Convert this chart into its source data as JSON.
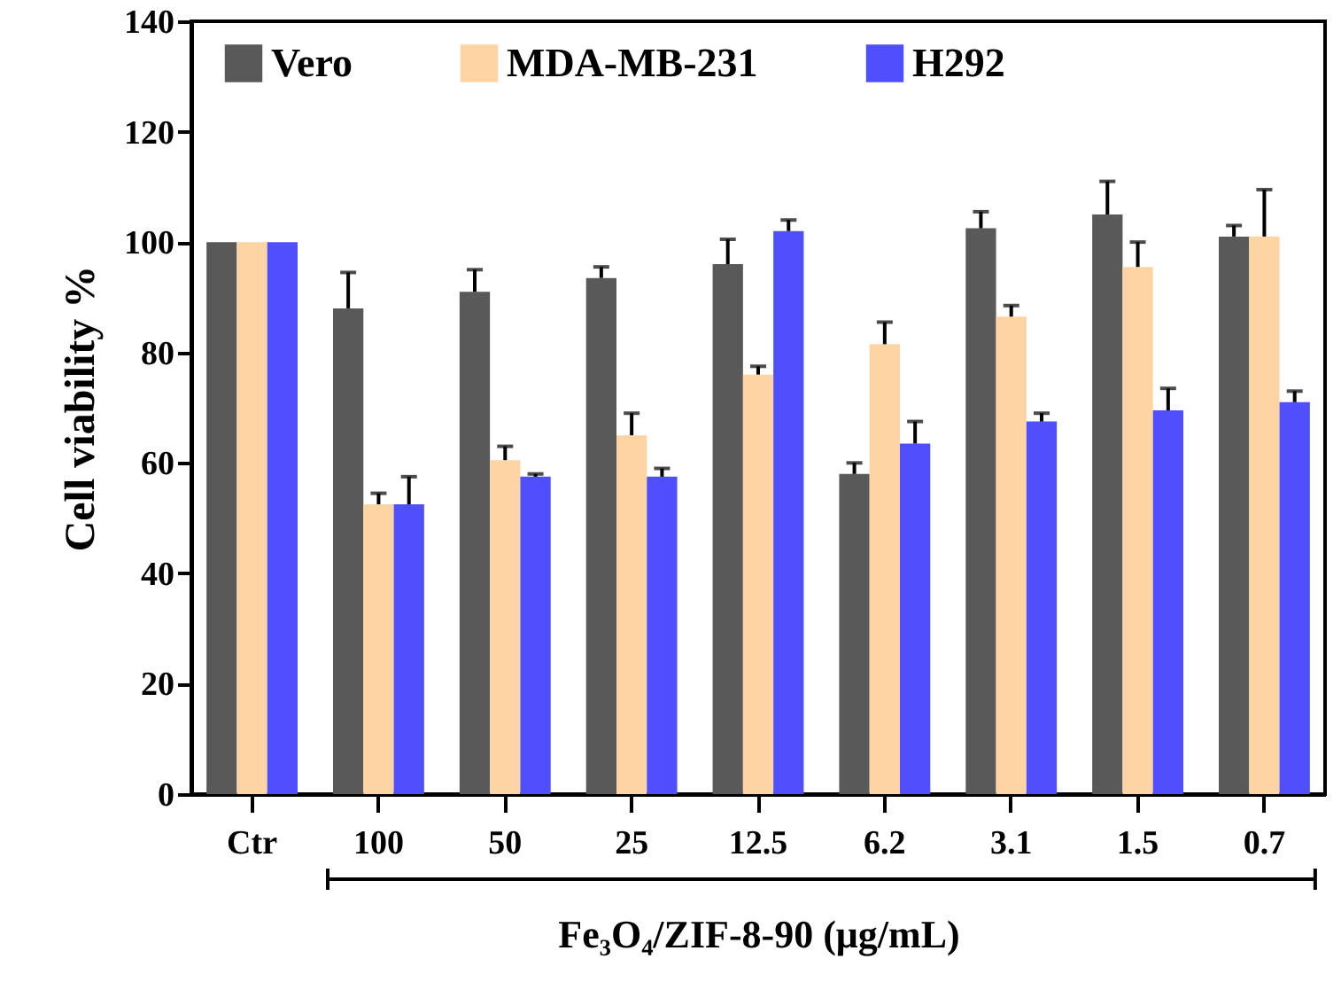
{
  "chart_data": {
    "type": "bar",
    "xlabel": "Fe₃O₄/ZIF-8-90 (μg/mL)",
    "ylabel": "Cell viability %",
    "categories": [
      "Ctr",
      "100",
      "50",
      "25",
      "12.5",
      "6.2",
      "3.1",
      "1.5",
      "0.7"
    ],
    "series": [
      {
        "name": "Vero",
        "color": "#595959",
        "values": [
          100,
          88,
          91,
          93.5,
          96,
          58,
          102.5,
          105,
          101
        ],
        "errors": [
          null,
          [
            88,
            94.5
          ],
          [
            91,
            95
          ],
          [
            93.5,
            95.5
          ],
          [
            96,
            100.5
          ],
          [
            58,
            60
          ],
          [
            102.5,
            105.5
          ],
          [
            105,
            111
          ],
          [
            101,
            103
          ]
        ]
      },
      {
        "name": "MDA-MB-231",
        "color": "#fed5a2",
        "values": [
          100,
          52.5,
          60.5,
          65,
          76,
          81.5,
          86.5,
          95.5,
          101
        ],
        "errors": [
          null,
          [
            52.5,
            54.5
          ],
          [
            60.5,
            63
          ],
          [
            65,
            69
          ],
          [
            76,
            77.5
          ],
          [
            81.5,
            85.5
          ],
          [
            86.5,
            88.5
          ],
          [
            95.5,
            100
          ],
          [
            101,
            109.5
          ]
        ]
      },
      {
        "name": "H292",
        "color": "#4f4ffe",
        "values": [
          100,
          52.5,
          57.5,
          57.5,
          102,
          63.5,
          67.5,
          69.5,
          71
        ],
        "errors": [
          null,
          [
            52.5,
            57.5
          ],
          [
            57.5,
            58
          ],
          [
            57.5,
            59
          ],
          [
            102,
            104
          ],
          [
            63.5,
            67.5
          ],
          [
            67.5,
            69
          ],
          [
            69.5,
            73.5
          ],
          [
            71,
            73
          ]
        ]
      }
    ],
    "ylim": [
      0,
      140
    ],
    "yticks": [
      0,
      20,
      40,
      60,
      80,
      100,
      120,
      140
    ],
    "grid": false,
    "legend": "top"
  }
}
